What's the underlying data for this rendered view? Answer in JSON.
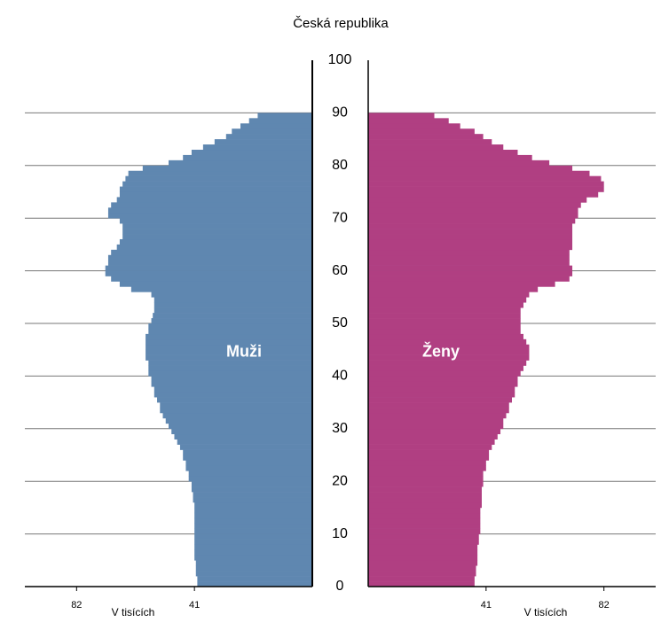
{
  "chart_data": {
    "type": "pyramid",
    "title": "Česká republika",
    "x_label": "V tisících",
    "y": [
      0,
      1,
      2,
      3,
      4,
      5,
      6,
      7,
      8,
      9,
      10,
      11,
      12,
      13,
      14,
      15,
      16,
      17,
      18,
      19,
      20,
      21,
      22,
      23,
      24,
      25,
      26,
      27,
      28,
      29,
      30,
      31,
      32,
      33,
      34,
      35,
      36,
      37,
      38,
      39,
      40,
      41,
      42,
      43,
      44,
      45,
      46,
      47,
      48,
      49,
      50,
      51,
      52,
      53,
      54,
      55,
      56,
      57,
      58,
      59,
      60,
      61,
      62,
      63,
      64,
      65,
      66,
      67,
      68,
      69,
      70,
      71,
      72,
      73,
      74,
      75,
      76,
      77,
      78,
      79,
      80,
      81,
      82,
      83,
      84,
      85,
      86,
      87,
      88,
      89
    ],
    "series": [
      {
        "name": "Muži",
        "side": "left",
        "color": "#5f87b0",
        "values": [
          40,
          40,
          40.5,
          40.5,
          40.5,
          41,
          41,
          41,
          41,
          41,
          41,
          41,
          41,
          41,
          41,
          41,
          41.5,
          41.5,
          42,
          42,
          43,
          43,
          44,
          44,
          45,
          45,
          46,
          47,
          48,
          49,
          50,
          51,
          52,
          53,
          53,
          54,
          55,
          55,
          56,
          56,
          57,
          57,
          57,
          58,
          58,
          58,
          58,
          58,
          57,
          57,
          56,
          55.5,
          55,
          55,
          55,
          56,
          63,
          67,
          70,
          72,
          72,
          71,
          71,
          70,
          68,
          67,
          66,
          66,
          66,
          67,
          71,
          71,
          70,
          68,
          67,
          67,
          66,
          65,
          64,
          59,
          50,
          45,
          42,
          38,
          34,
          30,
          28,
          25,
          22,
          19
        ]
      },
      {
        "name": "Ženy",
        "side": "right",
        "color": "#b03f82",
        "values": [
          37,
          37,
          37.5,
          37.5,
          38,
          38,
          38,
          38,
          38.5,
          38.5,
          39,
          39,
          39,
          39,
          39,
          39.5,
          39.5,
          39.5,
          39.5,
          40,
          40,
          40,
          41,
          41,
          42,
          42,
          43,
          44,
          45,
          46,
          47,
          47,
          48,
          49,
          49,
          50,
          51,
          51,
          52,
          52,
          53,
          54,
          55,
          56,
          56,
          56,
          55,
          54,
          53,
          53,
          53,
          53,
          53,
          54,
          55,
          56,
          59,
          65,
          70,
          71,
          71,
          70,
          70,
          70,
          71,
          71,
          71,
          71,
          71,
          72,
          73,
          73,
          74,
          76,
          80,
          82,
          82,
          81,
          77,
          71,
          63,
          57,
          52,
          47,
          43,
          40,
          37,
          32,
          28,
          23
        ]
      }
    ],
    "xlim": [
      0,
      100
    ],
    "xticks": [
      41,
      82
    ],
    "ylim": [
      0,
      100
    ],
    "yticks": [
      0,
      10,
      20,
      30,
      40,
      50,
      60,
      70,
      80,
      90,
      100
    ],
    "grid": true
  }
}
